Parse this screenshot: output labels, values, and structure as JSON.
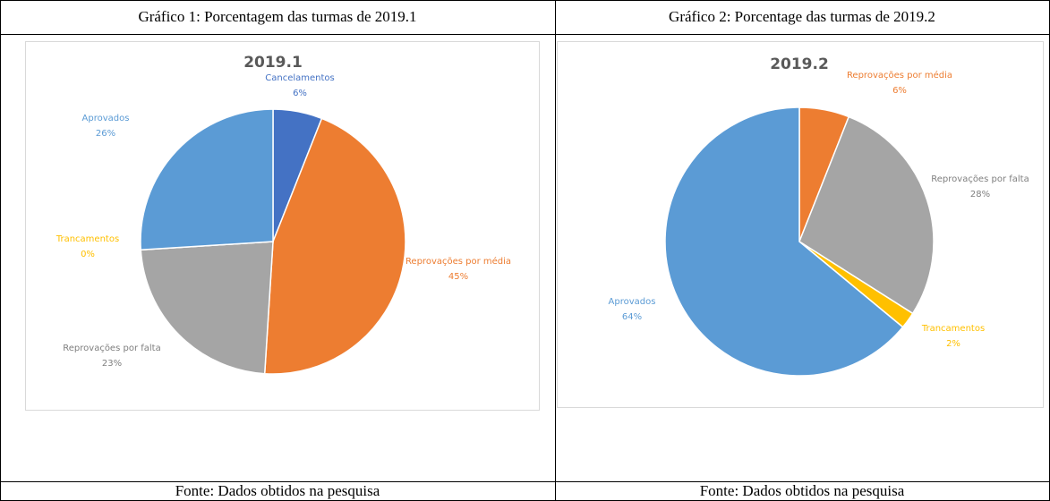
{
  "table": {
    "headers": [
      "Gráfico 1: Porcentagem das turmas de 2019.1",
      "Gráfico 2: Porcentage das turmas  de  2019.2"
    ],
    "footers": [
      "Fonte: Dados obtidos na pesquisa",
      "Fonte: Dados obtidos na pesquisa"
    ]
  },
  "chart_data": [
    {
      "type": "pie",
      "title": "2019.1",
      "categories": [
        "Cancelamentos",
        "Reprovações por média",
        "Reprovações por falta",
        "Trancamentos",
        "Aprovados"
      ],
      "values": [
        6,
        45,
        23,
        0,
        26
      ],
      "value_labels": [
        "6%",
        "45%",
        "23%",
        "0%",
        "26%"
      ],
      "colors": [
        "#4472c4",
        "#ed7d31",
        "#a5a5a5",
        "#ffc000",
        "#5b9bd5"
      ]
    },
    {
      "type": "pie",
      "title": "2019.2",
      "categories": [
        "Reprovações por média",
        "Reprovações por falta",
        "Trancamentos",
        "Aprovados"
      ],
      "values": [
        6,
        28,
        2,
        64
      ],
      "value_labels": [
        "6%",
        "28%",
        "2%",
        "64%"
      ],
      "colors": [
        "#ed7d31",
        "#a5a5a5",
        "#ffc000",
        "#5b9bd5"
      ]
    }
  ]
}
